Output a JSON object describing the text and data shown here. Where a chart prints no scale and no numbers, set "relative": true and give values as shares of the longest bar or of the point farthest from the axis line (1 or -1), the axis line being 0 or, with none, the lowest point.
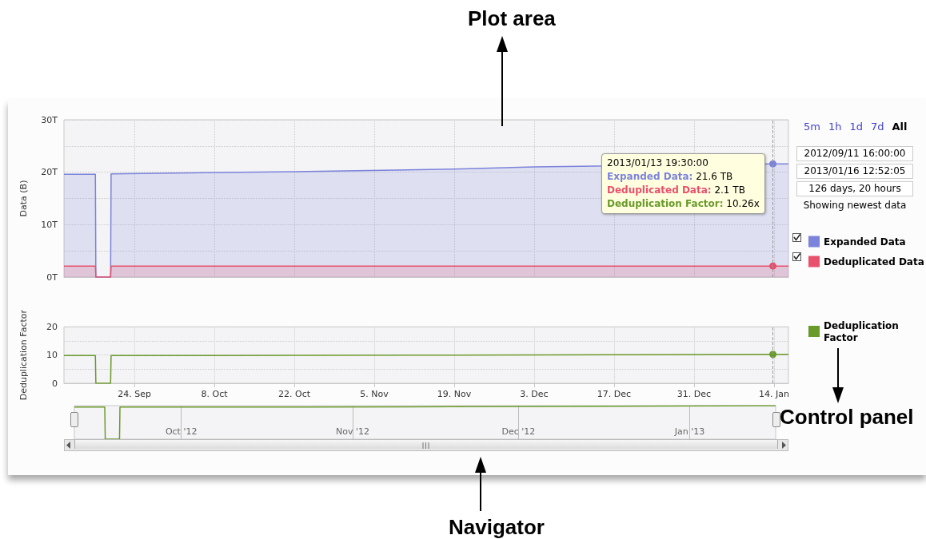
{
  "chart_data": [
    {
      "type": "area",
      "ylabel": "Data (B)",
      "x": [
        "2012-09-11T16:00",
        "2012-09-17T04:00",
        "2012-09-17T06:00",
        "2012-09-19T20:00",
        "2012-09-19T22:00",
        "2012-10-22",
        "2012-11-19",
        "2012-12-03",
        "2013-01-13T19:30",
        "2013-01-16T12:52"
      ],
      "series": [
        {
          "name": "Expanded Data",
          "color": "#7b83db",
          "values": [
            19.6,
            19.6,
            0,
            0,
            19.7,
            20.1,
            20.6,
            21.0,
            21.6,
            21.6
          ]
        },
        {
          "name": "Deduplicated Data",
          "color": "#e8506c",
          "values": [
            2.1,
            2.1,
            0,
            0,
            2.1,
            2.1,
            2.1,
            2.1,
            2.1,
            2.1
          ]
        }
      ],
      "xlim": [
        "2012-09-11T16:00",
        "2013-01-16T12:52"
      ],
      "xticks": [
        {
          "value": "2012-09-24",
          "label": null
        },
        {
          "value": "2012-10-08",
          "label": null
        },
        {
          "value": "2012-10-22",
          "label": null
        },
        {
          "value": "2012-11-05",
          "label": null
        },
        {
          "value": "2012-11-19",
          "label": null
        },
        {
          "value": "2012-12-03",
          "label": null
        },
        {
          "value": "2012-12-17",
          "label": null
        },
        {
          "value": "2012-12-31",
          "label": null
        },
        {
          "value": "2013-01-14",
          "label": null
        }
      ],
      "ylim": [
        0,
        30
      ],
      "yticks": [
        {
          "value": 0,
          "label": "0T"
        },
        {
          "value": 10,
          "label": "10T"
        },
        {
          "value": 20,
          "label": "20T"
        },
        {
          "value": 30,
          "label": "30T"
        }
      ],
      "tick_labels": "y",
      "grid": true,
      "legend": "right",
      "ref_lines": [
        {
          "axis": "x",
          "value": "2013-01-13T19:30",
          "label": null
        }
      ],
      "annotations": [
        "Plot area",
        "2013/01/13 19:30:00",
        "Expanded Data: 21.6 TB",
        "Deduplicated Data: 2.1 TB",
        "Deduplication Factor: 10.26x"
      ]
    },
    {
      "type": "line",
      "ylabel": "Deduplication Factor",
      "x": [
        "2012-09-11T16:00",
        "2012-09-17T04:00",
        "2012-09-17T06:00",
        "2012-09-19T20:00",
        "2012-09-19T22:00",
        "2012-10-22",
        "2012-11-19",
        "2012-12-17",
        "2013-01-13T19:30",
        "2013-01-16T12:52"
      ],
      "series": [
        {
          "name": "Deduplication Factor",
          "color": "#6a9a2a",
          "values": [
            9.8,
            9.8,
            0,
            0,
            9.8,
            9.9,
            10,
            10.1,
            10.26,
            10.26
          ]
        }
      ],
      "xlim": [
        "2012-09-11T16:00",
        "2013-01-16T12:52"
      ],
      "xticks": [
        {
          "value": "2012-09-24",
          "label": "24. Sep"
        },
        {
          "value": "2012-10-08",
          "label": "8. Oct"
        },
        {
          "value": "2012-10-22",
          "label": "22. Oct"
        },
        {
          "value": "2012-11-05",
          "label": "5. Nov"
        },
        {
          "value": "2012-11-19",
          "label": "19. Nov"
        },
        {
          "value": "2012-12-03",
          "label": "3. Dec"
        },
        {
          "value": "2012-12-17",
          "label": "17. Dec"
        },
        {
          "value": "2012-12-31",
          "label": "31. Dec"
        },
        {
          "value": "2013-01-14",
          "label": "14. Jan"
        }
      ],
      "ylim": [
        0,
        20
      ],
      "yticks": [
        0,
        10,
        20
      ],
      "grid": true,
      "legend": "right",
      "ref_lines": [
        {
          "axis": "x",
          "value": "2013-01-13T19:30",
          "label": null
        }
      ]
    },
    {
      "type": "line",
      "relative": true,
      "x": [
        "2012-09-11T16:00",
        "2012-09-17T04:00",
        "2012-09-17T06:00",
        "2012-09-19T20:00",
        "2012-09-19T22:00",
        "2012-10-22",
        "2012-11-19",
        "2012-12-17",
        "2013-01-13T19:30",
        "2013-01-16T12:52"
      ],
      "series": [
        {
          "color": "#6a9a2a",
          "values": [
            0.96,
            0.96,
            0,
            0,
            0.96,
            0.96,
            0.97,
            0.98,
            1,
            1
          ]
        }
      ],
      "xlim": [
        "2012-09-11T16:00",
        "2013-01-16T12:52"
      ],
      "xticks": [
        {
          "value": "2012-10-01",
          "label": "Oct '12"
        },
        {
          "value": "2012-11-01",
          "label": "Nov '12"
        },
        {
          "value": "2012-12-01",
          "label": "Dec '12"
        },
        {
          "value": "2013-01-01",
          "label": "Jan '13"
        }
      ],
      "grid": "x",
      "annotations": [
        "Navigator"
      ]
    },
    {
      "type": "other",
      "annotations": [
        "5m",
        "1h",
        "1d",
        "7d",
        "All",
        "2012/09/11 16:00:00",
        "2013/01/16 12:52:05",
        "126 days, 20 hours",
        "Showing newest data",
        "Control panel"
      ]
    }
  ]
}
